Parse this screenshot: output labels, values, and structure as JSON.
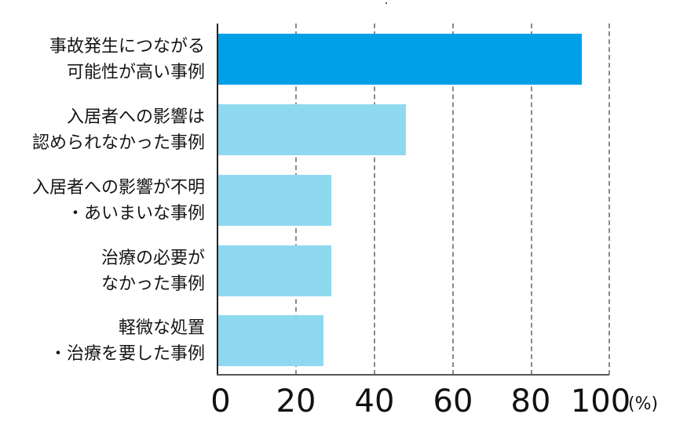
{
  "chart_data": {
    "type": "bar",
    "orientation": "horizontal",
    "title": "",
    "xlabel": "(%)",
    "ylabel": "",
    "xlim": [
      0,
      100
    ],
    "x_ticks": [
      "0",
      "20",
      "40",
      "60",
      "80",
      "100"
    ],
    "grid": "vertical dashed at 20, 40, 60, 80, 100",
    "categories": [
      "事故発生につながる可能性が高い事例",
      "入居者への影響は認められなかった事例",
      "入居者への影響が不明・あいまいな事例",
      "治療の必要がなかった事例",
      "軽微な処置・治療を要した事例"
    ],
    "values": [
      93,
      48,
      29,
      29,
      27
    ],
    "colors": [
      "#009fe8",
      "#8fd9f0",
      "#8fd9f0",
      "#8fd9f0",
      "#8fd9f0"
    ]
  },
  "labels": [
    {
      "line1": "事故発生につながる",
      "line2": "可能性が高い事例"
    },
    {
      "line1": "入居者への影響は",
      "line2": "認められなかった事例"
    },
    {
      "line1": "入居者への影響が不明",
      "line2": "・あいまいな事例"
    },
    {
      "line1": "治療の必要が",
      "line2": "なかった事例"
    },
    {
      "line1": "軽微な処置",
      "line2": "・治療を要した事例"
    }
  ],
  "ticks": [
    "0",
    "20",
    "40",
    "60",
    "80",
    "100"
  ],
  "unit": "(%)"
}
